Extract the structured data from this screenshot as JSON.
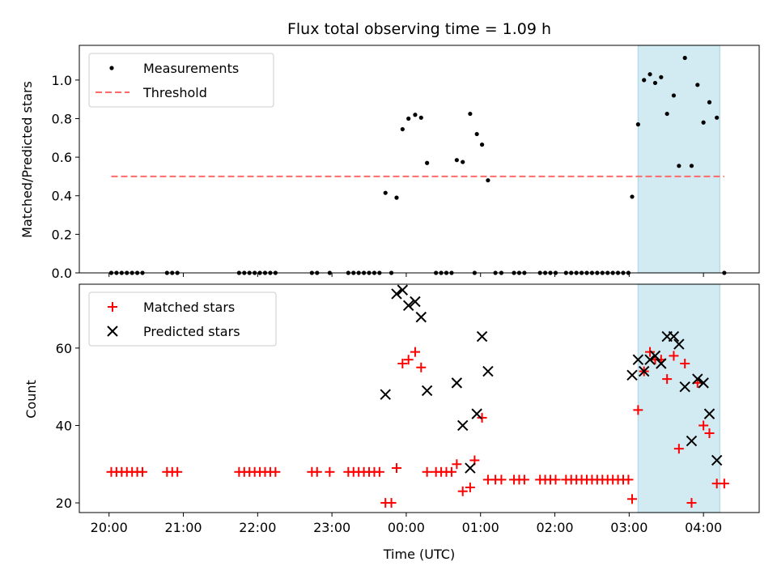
{
  "chart_data": {
    "title": "Flux total observing time = 1.09 h",
    "xlabel": "Time (UTC)",
    "x_ticks": [
      "20:00",
      "21:00",
      "22:00",
      "23:00",
      "00:00",
      "01:00",
      "02:00",
      "03:00",
      "04:00"
    ],
    "x_range_hours": [
      19.6,
      28.75
    ],
    "shaded_span_hours": [
      27.12,
      28.22
    ],
    "colors": {
      "measurements": "#000000",
      "threshold": "#ff6b6b",
      "matched": "#ff0000",
      "predicted": "#000000",
      "shade": "#add8e6"
    },
    "panels": [
      {
        "type": "scatter",
        "ylabel": "Matched/Predicted stars",
        "ylim": [
          0,
          1.18
        ],
        "y_ticks": [
          "0.0",
          "0.2",
          "0.4",
          "0.6",
          "0.8",
          "1.0"
        ],
        "y_tick_values": [
          0,
          0.2,
          0.4,
          0.6,
          0.8,
          1.0
        ],
        "legend": "top-left",
        "series": [
          {
            "name": "Measurements",
            "marker": "dot",
            "points": [
              [
                20.03,
                0
              ],
              [
                20.1,
                0
              ],
              [
                20.17,
                0
              ],
              [
                20.24,
                0
              ],
              [
                20.31,
                0
              ],
              [
                20.38,
                0
              ],
              [
                20.45,
                0
              ],
              [
                20.78,
                0
              ],
              [
                20.85,
                0
              ],
              [
                20.92,
                0
              ],
              [
                21.75,
                0
              ],
              [
                21.82,
                0
              ],
              [
                21.89,
                0
              ],
              [
                21.96,
                0
              ],
              [
                22.03,
                0
              ],
              [
                22.1,
                0
              ],
              [
                22.17,
                0
              ],
              [
                22.24,
                0
              ],
              [
                22.73,
                0
              ],
              [
                22.8,
                0
              ],
              [
                22.97,
                0
              ],
              [
                23.22,
                0
              ],
              [
                23.29,
                0
              ],
              [
                23.36,
                0
              ],
              [
                23.43,
                0
              ],
              [
                23.5,
                0
              ],
              [
                23.57,
                0
              ],
              [
                23.64,
                0
              ],
              [
                23.72,
                0.415
              ],
              [
                23.8,
                0
              ],
              [
                23.87,
                0.39
              ],
              [
                23.95,
                0.745
              ],
              [
                24.03,
                0.8
              ],
              [
                24.12,
                0.82
              ],
              [
                24.2,
                0.805
              ],
              [
                24.28,
                0.57
              ],
              [
                24.4,
                0
              ],
              [
                24.47,
                0
              ],
              [
                24.54,
                0
              ],
              [
                24.61,
                0
              ],
              [
                24.68,
                0.585
              ],
              [
                24.76,
                0.575
              ],
              [
                24.86,
                0.825
              ],
              [
                24.92,
                0
              ],
              [
                24.95,
                0.72
              ],
              [
                25.02,
                0.665
              ],
              [
                25.1,
                0.48
              ],
              [
                25.2,
                0
              ],
              [
                25.28,
                0
              ],
              [
                25.45,
                0
              ],
              [
                25.52,
                0
              ],
              [
                25.59,
                0
              ],
              [
                25.8,
                0
              ],
              [
                25.87,
                0
              ],
              [
                25.94,
                0
              ],
              [
                26.01,
                0
              ],
              [
                26.15,
                0
              ],
              [
                26.22,
                0
              ],
              [
                26.29,
                0
              ],
              [
                26.36,
                0
              ],
              [
                26.43,
                0
              ],
              [
                26.5,
                0
              ],
              [
                26.57,
                0
              ],
              [
                26.64,
                0
              ],
              [
                26.71,
                0
              ],
              [
                26.78,
                0
              ],
              [
                26.85,
                0
              ],
              [
                26.92,
                0
              ],
              [
                26.99,
                0
              ],
              [
                27.04,
                0.395
              ],
              [
                27.12,
                0.77
              ],
              [
                27.2,
                1.0
              ],
              [
                27.28,
                1.03
              ],
              [
                27.35,
                0.985
              ],
              [
                27.43,
                1.015
              ],
              [
                27.51,
                0.825
              ],
              [
                27.6,
                0.92
              ],
              [
                27.67,
                0.555
              ],
              [
                27.75,
                1.115
              ],
              [
                27.84,
                0.555
              ],
              [
                27.92,
                0.975
              ],
              [
                28.0,
                0.78
              ],
              [
                28.08,
                0.885
              ],
              [
                28.18,
                0.805
              ],
              [
                28.28,
                0
              ]
            ]
          },
          {
            "name": "Threshold",
            "marker": "dashed-line",
            "points": [
              [
                20.03,
                0.5
              ],
              [
                28.28,
                0.5
              ]
            ]
          }
        ]
      },
      {
        "type": "scatter",
        "ylabel": "Count",
        "ylim": [
          17.5,
          76.5
        ],
        "y_ticks": [
          "20",
          "40",
          "60"
        ],
        "y_tick_values": [
          20,
          40,
          60
        ],
        "legend": "top-left",
        "series": [
          {
            "name": "Matched stars",
            "marker": "plus",
            "points": [
              [
                20.03,
                28
              ],
              [
                20.1,
                28
              ],
              [
                20.17,
                28
              ],
              [
                20.24,
                28
              ],
              [
                20.31,
                28
              ],
              [
                20.38,
                28
              ],
              [
                20.45,
                28
              ],
              [
                20.78,
                28
              ],
              [
                20.85,
                28
              ],
              [
                20.92,
                28
              ],
              [
                21.75,
                28
              ],
              [
                21.82,
                28
              ],
              [
                21.89,
                28
              ],
              [
                21.96,
                28
              ],
              [
                22.03,
                28
              ],
              [
                22.1,
                28
              ],
              [
                22.17,
                28
              ],
              [
                22.24,
                28
              ],
              [
                22.73,
                28
              ],
              [
                22.8,
                28
              ],
              [
                22.97,
                28
              ],
              [
                23.22,
                28
              ],
              [
                23.29,
                28
              ],
              [
                23.36,
                28
              ],
              [
                23.43,
                28
              ],
              [
                23.5,
                28
              ],
              [
                23.57,
                28
              ],
              [
                23.64,
                28
              ],
              [
                23.72,
                20
              ],
              [
                23.8,
                20
              ],
              [
                23.87,
                29
              ],
              [
                23.95,
                56
              ],
              [
                24.03,
                57
              ],
              [
                24.12,
                59
              ],
              [
                24.2,
                55
              ],
              [
                24.28,
                28
              ],
              [
                24.4,
                28
              ],
              [
                24.47,
                28
              ],
              [
                24.54,
                28
              ],
              [
                24.61,
                28
              ],
              [
                24.68,
                30
              ],
              [
                24.76,
                23
              ],
              [
                24.86,
                24
              ],
              [
                24.92,
                31
              ],
              [
                25.02,
                42
              ],
              [
                25.1,
                26
              ],
              [
                25.2,
                26
              ],
              [
                25.28,
                26
              ],
              [
                25.45,
                26
              ],
              [
                25.52,
                26
              ],
              [
                25.59,
                26
              ],
              [
                25.8,
                26
              ],
              [
                25.87,
                26
              ],
              [
                25.94,
                26
              ],
              [
                26.01,
                26
              ],
              [
                26.15,
                26
              ],
              [
                26.22,
                26
              ],
              [
                26.29,
                26
              ],
              [
                26.36,
                26
              ],
              [
                26.43,
                26
              ],
              [
                26.5,
                26
              ],
              [
                26.57,
                26
              ],
              [
                26.64,
                26
              ],
              [
                26.71,
                26
              ],
              [
                26.78,
                26
              ],
              [
                26.85,
                26
              ],
              [
                26.92,
                26
              ],
              [
                26.99,
                26
              ],
              [
                27.04,
                21
              ],
              [
                27.12,
                44
              ],
              [
                27.2,
                54
              ],
              [
                27.28,
                59
              ],
              [
                27.35,
                57
              ],
              [
                27.43,
                57
              ],
              [
                27.51,
                52
              ],
              [
                27.6,
                58
              ],
              [
                27.67,
                34
              ],
              [
                27.75,
                56
              ],
              [
                27.84,
                20
              ],
              [
                27.92,
                51
              ],
              [
                28.0,
                40
              ],
              [
                28.08,
                38
              ],
              [
                28.18,
                25
              ],
              [
                28.28,
                25
              ]
            ]
          },
          {
            "name": "Predicted stars",
            "marker": "x",
            "points": [
              [
                23.72,
                48
              ],
              [
                23.87,
                74
              ],
              [
                23.95,
                75
              ],
              [
                24.03,
                71
              ],
              [
                24.12,
                72
              ],
              [
                24.2,
                68
              ],
              [
                24.28,
                49
              ],
              [
                24.68,
                51
              ],
              [
                24.76,
                40
              ],
              [
                24.86,
                29
              ],
              [
                24.95,
                43
              ],
              [
                25.02,
                63
              ],
              [
                25.1,
                54
              ],
              [
                27.04,
                53
              ],
              [
                27.12,
                57
              ],
              [
                27.2,
                54
              ],
              [
                27.28,
                57
              ],
              [
                27.35,
                58
              ],
              [
                27.43,
                56
              ],
              [
                27.51,
                63
              ],
              [
                27.6,
                63
              ],
              [
                27.67,
                61
              ],
              [
                27.75,
                50
              ],
              [
                27.84,
                36
              ],
              [
                27.92,
                52
              ],
              [
                28.0,
                51
              ],
              [
                28.08,
                43
              ],
              [
                28.18,
                31
              ]
            ]
          }
        ]
      }
    ]
  }
}
